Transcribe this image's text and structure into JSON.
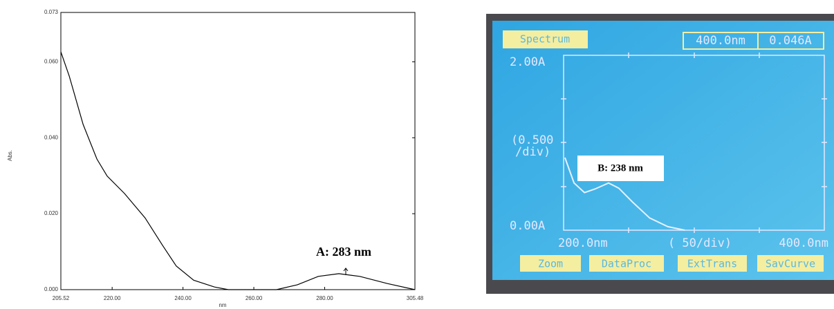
{
  "chart_data": [
    {
      "type": "line",
      "x_label": "nm",
      "y_label": "Abs.",
      "annotation": "A: 283 nm",
      "color": "#000000",
      "x": [
        205.52,
        207.9,
        211.8,
        215.7,
        218.6,
        223.5,
        229.3,
        234.2,
        238.1,
        243.0,
        248.9,
        252.8,
        266.4,
        272.3,
        278.2,
        284.0,
        289.9,
        297.7,
        305.48
      ],
      "values": [
        0.0626,
        0.0562,
        0.0435,
        0.0344,
        0.0299,
        0.0253,
        0.0189,
        0.0117,
        0.0062,
        0.0025,
        0.0007,
        0,
        0,
        0.0013,
        0.0035,
        0.0042,
        0.0035,
        0.0016,
        0
      ],
      "xlim": [
        205.52,
        305.48
      ],
      "xticks": [
        205.52,
        {
          "value": 220,
          "label": "220.00"
        },
        {
          "value": 240,
          "label": "240.00"
        },
        {
          "value": 260,
          "label": "260.00"
        },
        {
          "value": 280,
          "label": "280.00"
        },
        305.48
      ],
      "ylim": [
        0,
        0.073
      ],
      "yticks": [
        {
          "value": 0,
          "label": "0.000"
        },
        {
          "value": 0.02,
          "label": "0.020"
        },
        {
          "value": 0.04,
          "label": "0.040"
        },
        {
          "value": 0.06,
          "label": "0.060"
        },
        0.073
      ]
    },
    {
      "type": "line",
      "mode": "Spectrum",
      "cursor_wavelength": "400.0nm",
      "cursor_value": "0.046A",
      "y_scale_lines": [
        "(0.500",
        "/div)"
      ],
      "x_scale": "( 50/div)",
      "buttons": [
        "Zoom",
        "DataProc",
        "ExtTrans",
        "SavCurve"
      ],
      "annotation": "B: 238 nm",
      "color": "#e8f0ff",
      "x": [
        201,
        208,
        216,
        224,
        234.5,
        242.4,
        253,
        266,
        280,
        293
      ],
      "values": [
        0.83,
        0.54,
        0.43,
        0.47,
        0.54,
        0.48,
        0.32,
        0.14,
        0.04,
        0
      ],
      "xlim": [
        200,
        400
      ],
      "xticks": [
        {
          "value": 200,
          "label": "200.0nm"
        },
        {
          "value": 400,
          "label": "400.0nm"
        }
      ],
      "ylim": [
        0,
        2
      ],
      "yticks": [
        {
          "value": 0,
          "label": "0.00A"
        },
        {
          "value": 2,
          "label": "2.00A"
        }
      ]
    }
  ]
}
